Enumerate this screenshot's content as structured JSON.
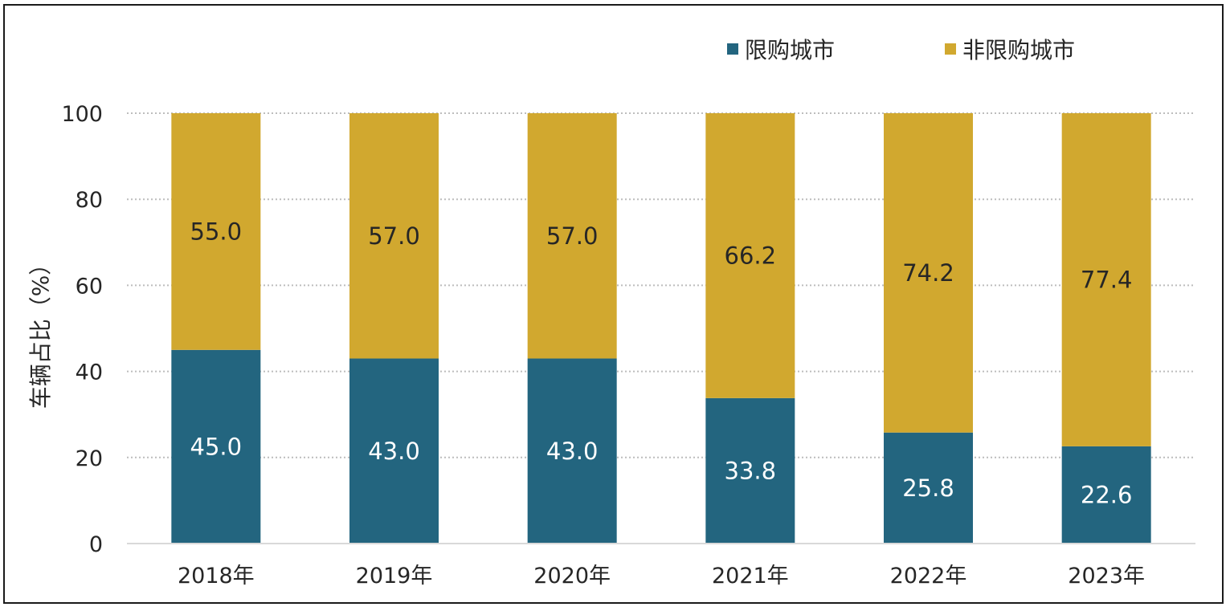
{
  "chart_data": {
    "type": "bar",
    "stacked": true,
    "categories": [
      "2018年",
      "2019年",
      "2020年",
      "2021年",
      "2022年",
      "2023年"
    ],
    "series": [
      {
        "name": "限购城市",
        "color": "#23657f",
        "label_color": "#ffffff",
        "values": [
          45.0,
          43.0,
          43.0,
          33.8,
          25.8,
          22.6
        ],
        "labels": [
          "45.0",
          "43.0",
          "43.0",
          "33.8",
          "25.8",
          "22.6"
        ]
      },
      {
        "name": "非限购城市",
        "color": "#d1a82f",
        "label_color": "#262626",
        "values": [
          55.0,
          57.0,
          57.0,
          66.2,
          74.2,
          77.4
        ],
        "labels": [
          "55.0",
          "57.0",
          "57.0",
          "66.2",
          "74.2",
          "77.4"
        ]
      }
    ],
    "ylabel": "车辆占比（%）",
    "xlabel": "",
    "ylim": [
      0,
      100
    ],
    "yticks": [
      "0",
      "20",
      "40",
      "60",
      "80",
      "100"
    ],
    "grid": true,
    "legend_position": "top-right"
  }
}
